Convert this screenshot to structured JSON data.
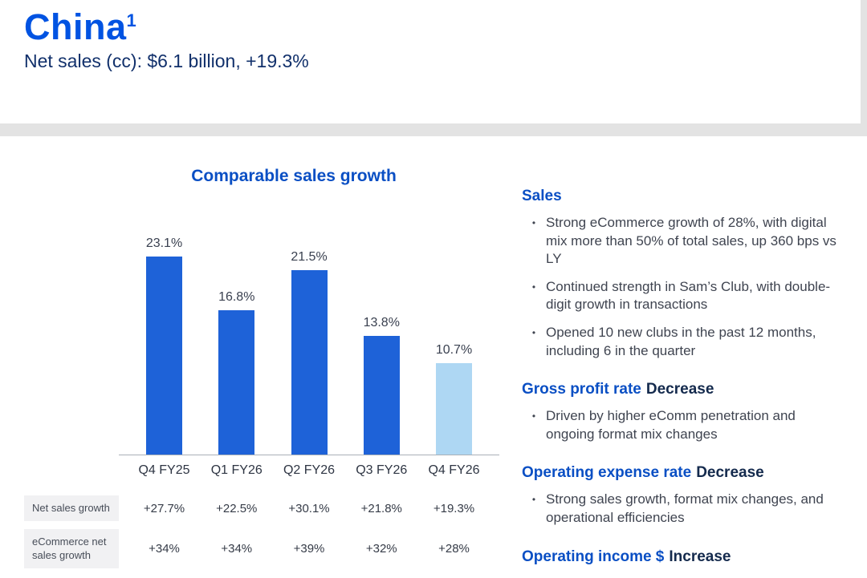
{
  "header": {
    "title": "China",
    "superscript": "1",
    "subtitle": "Net sales (cc): $6.1 billion, +19.3%"
  },
  "chart_data": {
    "type": "bar",
    "title": "Comparable sales growth",
    "categories": [
      "Q4 FY25",
      "Q1 FY26",
      "Q2 FY26",
      "Q3 FY26",
      "Q4 FY26"
    ],
    "values": [
      23.1,
      16.8,
      21.5,
      13.8,
      10.7
    ],
    "value_labels": [
      "23.1%",
      "16.8%",
      "21.5%",
      "13.8%",
      "10.7%"
    ],
    "bar_colors": [
      "#1e62d8",
      "#1e62d8",
      "#1e62d8",
      "#1e62d8",
      "#aed7f3"
    ],
    "xlabel": "",
    "ylabel": "",
    "ylim": [
      0,
      25
    ],
    "grid": false,
    "legend": false
  },
  "table": {
    "rows": [
      {
        "label": "Net sales growth",
        "values": [
          "+27.7%",
          "+22.5%",
          "+30.1%",
          "+21.8%",
          "+19.3%"
        ]
      },
      {
        "label": "eCommerce net sales growth",
        "values": [
          "+34%",
          "+34%",
          "+39%",
          "+32%",
          "+28%"
        ]
      }
    ]
  },
  "details": {
    "sections": [
      {
        "heading": "Sales",
        "suffix": "",
        "bullets": [
          "Strong eCommerce growth of 28%, with digital mix more than 50% of total sales, up 360 bps vs LY",
          "Continued strength in Sam’s Club, with double-digit growth in transactions",
          "Opened 10 new clubs in the past 12 months, including 6 in the quarter"
        ]
      },
      {
        "heading": "Gross profit rate",
        "suffix": "Decrease",
        "bullets": [
          "Driven by higher eComm penetration and ongoing format mix changes"
        ]
      },
      {
        "heading": "Operating expense rate",
        "suffix": "Decrease",
        "bullets": [
          "Strong sales growth, format mix changes, and operational efficiencies"
        ]
      },
      {
        "heading": "Operating income $",
        "suffix": "Increase",
        "bullets": []
      }
    ]
  },
  "colors": {
    "title_blue": "#0053e2",
    "heading_blue": "#0a4fc4",
    "navy": "#11306b",
    "bar_blue": "#1e62d8",
    "bar_light_blue": "#aed7f3"
  }
}
